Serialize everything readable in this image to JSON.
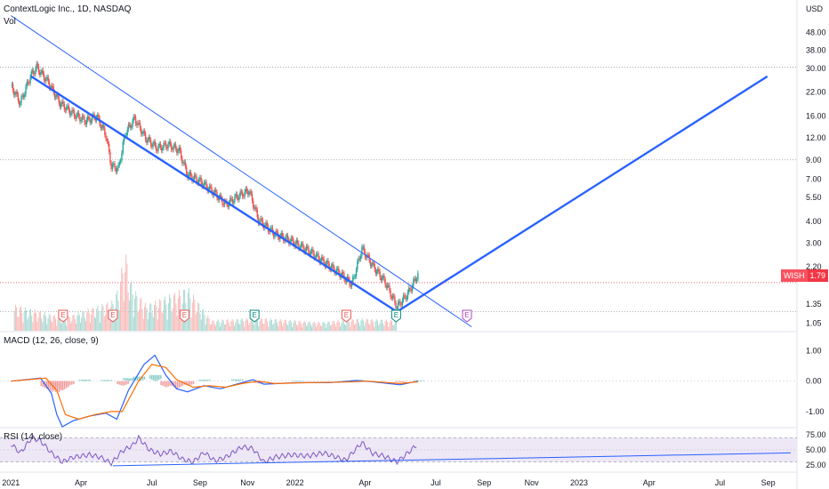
{
  "header": {
    "title": "ContextLogic Inc., 1D, NASDAQ",
    "vol_label": "Vol"
  },
  "currency": "USD",
  "ticker_tag": {
    "symbol": "WISH",
    "price": "1.79"
  },
  "colors": {
    "up": "#26a69a",
    "down": "#ef5350",
    "trend": "#2962ff",
    "macd": "#2962ff",
    "signal": "#ff6d00",
    "rsi": "#7e57c2",
    "rsi_band": "#ede7f6",
    "earnings_red": "#ef5350",
    "earnings_teal": "#00897b",
    "earnings_purple": "#ab47bc"
  },
  "earnings_markers": [
    {
      "date": "2021-03-09",
      "letter": "E",
      "color": "red"
    },
    {
      "date": "2021-05-12",
      "letter": "E",
      "color": "red"
    },
    {
      "date": "2021-08-12",
      "letter": "E",
      "color": "red"
    },
    {
      "date": "2021-11-10",
      "letter": "E",
      "color": "teal"
    },
    {
      "date": "2022-03-08",
      "letter": "E",
      "color": "red"
    },
    {
      "date": "2022-05-11",
      "letter": "E",
      "color": "teal"
    },
    {
      "date": "2022-08-10",
      "letter": "E",
      "color": "purple"
    }
  ],
  "chart_data": [
    {
      "type": "candlestick",
      "title": "ContextLogic Inc., 1D, NASDAQ",
      "yscale": "log",
      "ylim": [
        0.95,
        72
      ],
      "x_ticks": [
        "2021",
        "Apr",
        "Jul",
        "Sep",
        "Nov",
        "2022",
        "Apr",
        "Jul",
        "Sep",
        "Nov",
        "2023",
        "Apr",
        "Jul",
        "Sep"
      ],
      "x_tick_dates": [
        "2021-01-01",
        "2021-04-01",
        "2021-07-01",
        "2021-09-01",
        "2021-11-01",
        "2022-01-01",
        "2022-04-01",
        "2022-07-01",
        "2022-09-01",
        "2022-11-01",
        "2023-01-01",
        "2023-04-01",
        "2023-07-01",
        "2023-09-01"
      ],
      "y_ticks": [
        "48.00",
        "38.00",
        "30.00",
        "22.00",
        "16.00",
        "12.00",
        "9.00",
        "7.00",
        "5.50",
        "4.00",
        "3.00",
        "2.20",
        "1.35",
        "1.05"
      ],
      "y_tick_values": [
        48,
        38,
        30,
        22,
        16,
        12,
        9,
        7,
        5.5,
        4,
        3,
        2.2,
        1.35,
        1.05
      ],
      "price_path": [
        {
          "date": "2021-01-01",
          "close": 24.0
        },
        {
          "date": "2021-01-13",
          "close": 19.0
        },
        {
          "date": "2021-01-26",
          "close": 27.0
        },
        {
          "date": "2021-02-03",
          "close": 30.5
        },
        {
          "date": "2021-02-18",
          "close": 25.0
        },
        {
          "date": "2021-03-05",
          "close": 19.0
        },
        {
          "date": "2021-03-22",
          "close": 16.5
        },
        {
          "date": "2021-04-07",
          "close": 15.0
        },
        {
          "date": "2021-04-21",
          "close": 16.0
        },
        {
          "date": "2021-05-03",
          "close": 12.5
        },
        {
          "date": "2021-05-10",
          "close": 8.3
        },
        {
          "date": "2021-05-19",
          "close": 8.0
        },
        {
          "date": "2021-05-28",
          "close": 12.8
        },
        {
          "date": "2021-06-09",
          "close": 15.5
        },
        {
          "date": "2021-06-23",
          "close": 12.0
        },
        {
          "date": "2021-07-08",
          "close": 10.5
        },
        {
          "date": "2021-07-22",
          "close": 11.0
        },
        {
          "date": "2021-08-05",
          "close": 10.2
        },
        {
          "date": "2021-08-16",
          "close": 7.4
        },
        {
          "date": "2021-09-01",
          "close": 6.8
        },
        {
          "date": "2021-09-20",
          "close": 5.8
        },
        {
          "date": "2021-10-04",
          "close": 5.0
        },
        {
          "date": "2021-10-20",
          "close": 5.6
        },
        {
          "date": "2021-11-03",
          "close": 6.0
        },
        {
          "date": "2021-11-15",
          "close": 4.1
        },
        {
          "date": "2021-12-06",
          "close": 3.4
        },
        {
          "date": "2021-12-27",
          "close": 3.1
        },
        {
          "date": "2022-01-20",
          "close": 2.7
        },
        {
          "date": "2022-02-10",
          "close": 2.3
        },
        {
          "date": "2022-03-01",
          "close": 2.0
        },
        {
          "date": "2022-03-15",
          "close": 1.75
        },
        {
          "date": "2022-03-28",
          "close": 2.8
        },
        {
          "date": "2022-04-12",
          "close": 2.2
        },
        {
          "date": "2022-04-27",
          "close": 1.8
        },
        {
          "date": "2022-05-12",
          "close": 1.3
        },
        {
          "date": "2022-05-26",
          "close": 1.55
        },
        {
          "date": "2022-06-08",
          "close": 2.0
        }
      ],
      "trend_lines": [
        {
          "points": [
            [
              "2021-01-01",
              60.0
            ],
            [
              "2022-08-16",
              1.0
            ]
          ],
          "style": "thin"
        },
        {
          "points": [
            [
              "2021-01-27",
              27.0
            ],
            [
              "2022-05-12",
              1.22
            ]
          ],
          "style": "thick"
        },
        {
          "points": [
            [
              "2022-05-12",
              1.22
            ],
            [
              "2023-08-31",
              27.0
            ]
          ],
          "style": "thick"
        }
      ],
      "horizontal_levels": [
        30.5,
        9.0,
        1.22
      ],
      "last_price": 1.79
    },
    {
      "type": "bar",
      "name": "Vol",
      "description_volume": [
        {
          "date": "2021-01-05",
          "value": 0.3
        },
        {
          "date": "2021-03-10",
          "value": 0.15
        },
        {
          "date": "2021-05-13",
          "value": 0.35
        },
        {
          "date": "2021-05-20",
          "value": 0.55
        },
        {
          "date": "2021-05-27",
          "value": 0.95
        },
        {
          "date": "2021-06-03",
          "value": 0.6
        },
        {
          "date": "2021-06-10",
          "value": 0.45
        },
        {
          "date": "2021-06-24",
          "value": 0.3
        },
        {
          "date": "2021-08-16",
          "value": 0.5
        },
        {
          "date": "2021-09-15",
          "value": 0.12
        },
        {
          "date": "2021-11-12",
          "value": 0.15
        },
        {
          "date": "2022-02-01",
          "value": 0.1
        },
        {
          "date": "2022-03-25",
          "value": 0.14
        },
        {
          "date": "2022-05-12",
          "value": 0.12
        }
      ]
    },
    {
      "type": "line",
      "title": "MACD (12, 26, close, 9)",
      "ylim": [
        -1.5,
        1.6
      ],
      "y_ticks": [
        "1.00",
        "0.00",
        "-1.00"
      ],
      "y_tick_values": [
        1,
        0,
        -1
      ],
      "series": [
        {
          "role": "macd",
          "points": [
            [
              "2021-01-01",
              0.0
            ],
            [
              "2021-02-08",
              0.1
            ],
            [
              "2021-02-22",
              -0.4
            ],
            [
              "2021-03-01",
              -1.1
            ],
            [
              "2021-03-08",
              -1.5
            ],
            [
              "2021-03-22",
              -1.3
            ],
            [
              "2021-04-12",
              -1.15
            ],
            [
              "2021-05-03",
              -1.05
            ],
            [
              "2021-05-17",
              -1.25
            ],
            [
              "2021-06-01",
              -0.3
            ],
            [
              "2021-06-21",
              0.55
            ],
            [
              "2021-07-05",
              0.85
            ],
            [
              "2021-07-19",
              0.2
            ],
            [
              "2021-08-02",
              -0.25
            ],
            [
              "2021-08-16",
              -0.35
            ],
            [
              "2021-09-06",
              -0.15
            ],
            [
              "2021-09-27",
              -0.25
            ],
            [
              "2021-10-18",
              -0.1
            ],
            [
              "2021-11-08",
              0.05
            ],
            [
              "2021-11-22",
              -0.1
            ],
            [
              "2022-01-03",
              -0.05
            ],
            [
              "2022-02-14",
              -0.05
            ],
            [
              "2022-03-21",
              0.02
            ],
            [
              "2022-04-11",
              -0.02
            ],
            [
              "2022-05-16",
              -0.12
            ],
            [
              "2022-06-08",
              0.0
            ]
          ]
        },
        {
          "role": "signal",
          "points": [
            [
              "2021-01-01",
              0.0
            ],
            [
              "2021-02-15",
              0.1
            ],
            [
              "2021-03-01",
              -0.3
            ],
            [
              "2021-03-12",
              -1.1
            ],
            [
              "2021-03-29",
              -1.25
            ],
            [
              "2021-04-19",
              -1.1
            ],
            [
              "2021-05-10",
              -1.0
            ],
            [
              "2021-05-24",
              -1.0
            ],
            [
              "2021-06-14",
              0.0
            ],
            [
              "2021-07-01",
              0.55
            ],
            [
              "2021-07-19",
              0.45
            ],
            [
              "2021-08-02",
              0.05
            ],
            [
              "2021-08-23",
              -0.2
            ],
            [
              "2021-09-13",
              -0.15
            ],
            [
              "2021-10-04",
              -0.2
            ],
            [
              "2021-10-25",
              -0.08
            ],
            [
              "2021-11-15",
              0.0
            ],
            [
              "2021-12-06",
              -0.08
            ],
            [
              "2022-01-17",
              -0.05
            ],
            [
              "2022-03-07",
              -0.03
            ],
            [
              "2022-04-04",
              0.0
            ],
            [
              "2022-05-16",
              -0.08
            ],
            [
              "2022-06-08",
              -0.02
            ]
          ]
        }
      ],
      "histogram": [
        [
          "2021-02-15",
          -0.25
        ],
        [
          "2021-02-22",
          -0.35
        ],
        [
          "2021-03-01",
          -0.4
        ],
        [
          "2021-03-08",
          -0.3
        ],
        [
          "2021-03-15",
          -0.15
        ],
        [
          "2021-04-05",
          0.05
        ],
        [
          "2021-05-03",
          0.04
        ],
        [
          "2021-05-24",
          -0.15
        ],
        [
          "2021-06-01",
          0.1
        ],
        [
          "2021-06-14",
          0.15
        ],
        [
          "2021-07-05",
          0.2
        ],
        [
          "2021-07-19",
          -0.2
        ],
        [
          "2021-08-02",
          -0.25
        ],
        [
          "2021-08-16",
          -0.15
        ],
        [
          "2021-09-06",
          0.05
        ],
        [
          "2021-10-18",
          0.06
        ],
        [
          "2021-11-15",
          -0.08
        ],
        [
          "2022-01-03",
          0.02
        ],
        [
          "2022-03-21",
          0.04
        ],
        [
          "2022-05-16",
          -0.04
        ],
        [
          "2022-06-08",
          0.03
        ]
      ]
    },
    {
      "type": "line",
      "title": "RSI (14, close)",
      "ylim": [
        15,
        85
      ],
      "y_ticks": [
        "75.00",
        "50.00",
        "25.00"
      ],
      "y_tick_values": [
        75,
        50,
        25
      ],
      "band": [
        30,
        70
      ],
      "series": [
        {
          "role": "rsi",
          "points": [
            [
              "2021-01-01",
              60
            ],
            [
              "2021-01-13",
              45
            ],
            [
              "2021-01-28",
              70
            ],
            [
              "2021-02-08",
              65
            ],
            [
              "2021-02-22",
              45
            ],
            [
              "2021-03-08",
              30
            ],
            [
              "2021-03-22",
              38
            ],
            [
              "2021-04-12",
              42
            ],
            [
              "2021-04-26",
              38
            ],
            [
              "2021-05-10",
              28
            ],
            [
              "2021-05-24",
              48
            ],
            [
              "2021-06-07",
              58
            ],
            [
              "2021-06-14",
              70
            ],
            [
              "2021-06-28",
              50
            ],
            [
              "2021-07-12",
              43
            ],
            [
              "2021-07-26",
              48
            ],
            [
              "2021-08-09",
              35
            ],
            [
              "2021-08-23",
              30
            ],
            [
              "2021-09-06",
              46
            ],
            [
              "2021-09-20",
              32
            ],
            [
              "2021-10-04",
              38
            ],
            [
              "2021-10-25",
              55
            ],
            [
              "2021-11-08",
              52
            ],
            [
              "2021-11-22",
              30
            ],
            [
              "2021-12-06",
              38
            ],
            [
              "2021-12-27",
              42
            ],
            [
              "2022-01-17",
              40
            ],
            [
              "2022-02-07",
              45
            ],
            [
              "2022-03-07",
              33
            ],
            [
              "2022-03-28",
              62
            ],
            [
              "2022-04-11",
              44
            ],
            [
              "2022-04-25",
              40
            ],
            [
              "2022-05-12",
              30
            ],
            [
              "2022-05-26",
              45
            ],
            [
              "2022-06-08",
              60
            ]
          ]
        }
      ],
      "trend_lines": [
        {
          "points": [
            [
              "2021-05-12",
              24
            ],
            [
              "2023-09-30",
              45
            ]
          ]
        }
      ]
    }
  ]
}
